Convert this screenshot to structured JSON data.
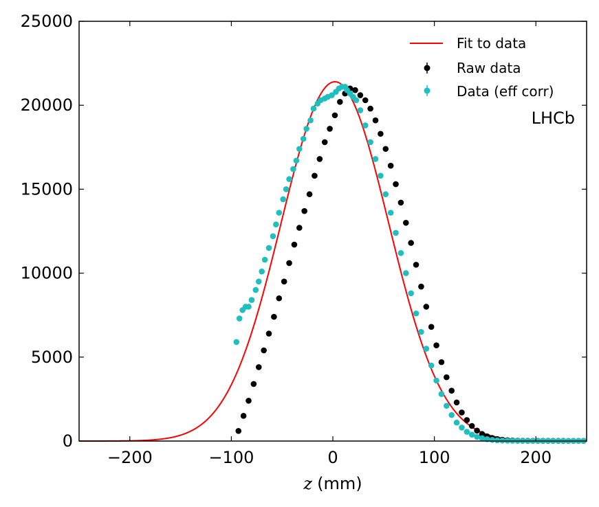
{
  "chart_data": {
    "type": "scatter",
    "title": "",
    "xlabel_var": "z",
    "xlabel_unit": "(mm)",
    "ylabel": "",
    "xlim": [
      -250,
      250
    ],
    "ylim": [
      0,
      25000
    ],
    "xticks": [
      -200,
      -100,
      0,
      100,
      200
    ],
    "yticks": [
      0,
      5000,
      10000,
      15000,
      20000,
      25000
    ],
    "annotation": "LHCb",
    "legend_position": "top-right",
    "colors": {
      "fit": "#ff0000",
      "raw": "#000000",
      "corr": "#1fbfbf"
    },
    "series": [
      {
        "name": "Fit to data",
        "kind": "line",
        "model": {
          "function": "gaussian",
          "amplitude": 21400,
          "mean": 2,
          "sigma": 53
        }
      },
      {
        "name": "Raw data",
        "kind": "points",
        "x": [
          -93,
          -88,
          -83,
          -78,
          -73,
          -68,
          -63,
          -58,
          -53,
          -48,
          -43,
          -38,
          -33,
          -28,
          -23,
          -18,
          -13,
          -8,
          -3,
          2,
          7,
          12,
          17,
          22,
          27,
          32,
          37,
          42,
          47,
          52,
          57,
          62,
          67,
          72,
          77,
          82,
          87,
          92,
          97,
          102,
          107,
          112,
          117,
          122,
          127,
          132,
          137,
          142,
          147,
          152,
          157,
          162,
          167,
          172,
          177,
          182,
          187,
          192,
          197,
          202,
          207,
          212,
          217,
          222,
          227,
          232,
          237,
          242,
          247
        ],
        "y": [
          600,
          1500,
          2400,
          3400,
          4400,
          5400,
          6400,
          7400,
          8500,
          9500,
          10600,
          11700,
          12700,
          13700,
          14700,
          15800,
          16800,
          17800,
          18600,
          19400,
          20200,
          20700,
          21000,
          20900,
          20600,
          20300,
          19800,
          19100,
          18300,
          17400,
          16400,
          15300,
          14200,
          13000,
          11800,
          10500,
          9200,
          8000,
          6800,
          5700,
          4700,
          3800,
          3000,
          2300,
          1700,
          1250,
          900,
          620,
          420,
          280,
          180,
          115,
          75,
          50,
          34,
          25,
          20,
          17,
          15,
          14,
          13,
          12,
          12,
          11,
          11,
          10,
          10,
          10,
          10
        ]
      },
      {
        "name": "Data (eff corr)",
        "kind": "points",
        "x": [
          -95,
          -92,
          -89,
          -86,
          -83,
          -80,
          -76,
          -73,
          -70,
          -67,
          -63,
          -59,
          -56,
          -53,
          -49,
          -46,
          -43,
          -39,
          -36,
          -33,
          -29,
          -26,
          -22,
          -19,
          -15,
          -12,
          -8,
          -5,
          -1,
          3,
          6,
          9,
          12,
          14,
          17,
          20,
          23,
          27,
          32,
          37,
          42,
          47,
          52,
          57,
          62,
          67,
          72,
          77,
          82,
          87,
          92,
          97,
          102,
          107,
          112,
          117,
          122,
          127,
          132,
          137,
          142,
          147,
          152,
          157,
          162,
          167,
          172,
          177,
          182,
          187,
          192,
          197,
          202,
          207,
          212,
          217,
          222,
          227,
          232,
          237,
          242,
          247
        ],
        "y": [
          5900,
          7300,
          7800,
          8000,
          8000,
          8400,
          9000,
          9500,
          10100,
          10800,
          11500,
          12200,
          12900,
          13600,
          14400,
          15000,
          15600,
          16200,
          16700,
          17400,
          18000,
          18600,
          19100,
          19800,
          20100,
          20300,
          20400,
          20500,
          20600,
          20800,
          21000,
          21100,
          21100,
          20900,
          20700,
          20500,
          20300,
          19700,
          18800,
          17800,
          16800,
          15800,
          14700,
          13600,
          12400,
          11200,
          10000,
          8800,
          7600,
          6500,
          5500,
          4500,
          3600,
          2800,
          2100,
          1550,
          1100,
          800,
          550,
          380,
          250,
          170,
          110,
          70,
          45,
          30,
          22,
          17,
          14,
          12,
          11,
          10,
          10,
          10,
          10,
          10,
          10,
          10,
          10,
          10,
          10,
          10
        ]
      }
    ]
  }
}
